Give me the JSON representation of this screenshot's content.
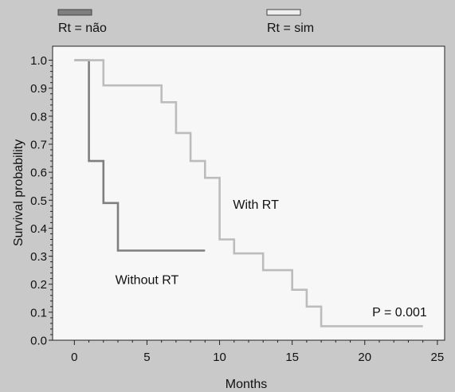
{
  "chart_data": {
    "type": "line",
    "step": true,
    "xlabel": "Months",
    "ylabel": "Survival probability",
    "xlim": [
      -1.5,
      25.5
    ],
    "ylim": [
      0,
      1.05
    ],
    "xticks": [
      0,
      5,
      10,
      15,
      20,
      25
    ],
    "yticks": [
      0.0,
      0.1,
      0.2,
      0.3,
      0.4,
      0.5,
      0.6,
      0.7,
      0.8,
      0.9,
      1.0
    ],
    "grid": false,
    "legend_position": "top",
    "series": [
      {
        "name": "Rt = não",
        "color": "#7f7f7f",
        "x": [
          0,
          1,
          1,
          2,
          2,
          3,
          3,
          9
        ],
        "y": [
          1.0,
          1.0,
          0.64,
          0.64,
          0.49,
          0.49,
          0.32,
          0.32
        ]
      },
      {
        "name": "Rt = sim",
        "color": "#bcbcbc",
        "x": [
          0,
          2,
          2,
          6,
          6,
          7,
          7,
          8,
          8,
          9,
          9,
          10,
          10,
          11,
          11,
          13,
          13,
          15,
          15,
          16,
          16,
          17,
          17,
          24
        ],
        "y": [
          1.0,
          1.0,
          0.91,
          0.91,
          0.85,
          0.85,
          0.74,
          0.74,
          0.64,
          0.64,
          0.58,
          0.58,
          0.36,
          0.36,
          0.31,
          0.31,
          0.25,
          0.25,
          0.18,
          0.18,
          0.12,
          0.12,
          0.05,
          0.05
        ]
      }
    ],
    "annotations": [
      {
        "text": "With RT",
        "x": 12.5,
        "y": 0.47
      },
      {
        "text": "Without RT",
        "x": 5,
        "y": 0.2
      },
      {
        "text": "P = 0.001",
        "x": 22.4,
        "y": 0.085
      }
    ]
  }
}
